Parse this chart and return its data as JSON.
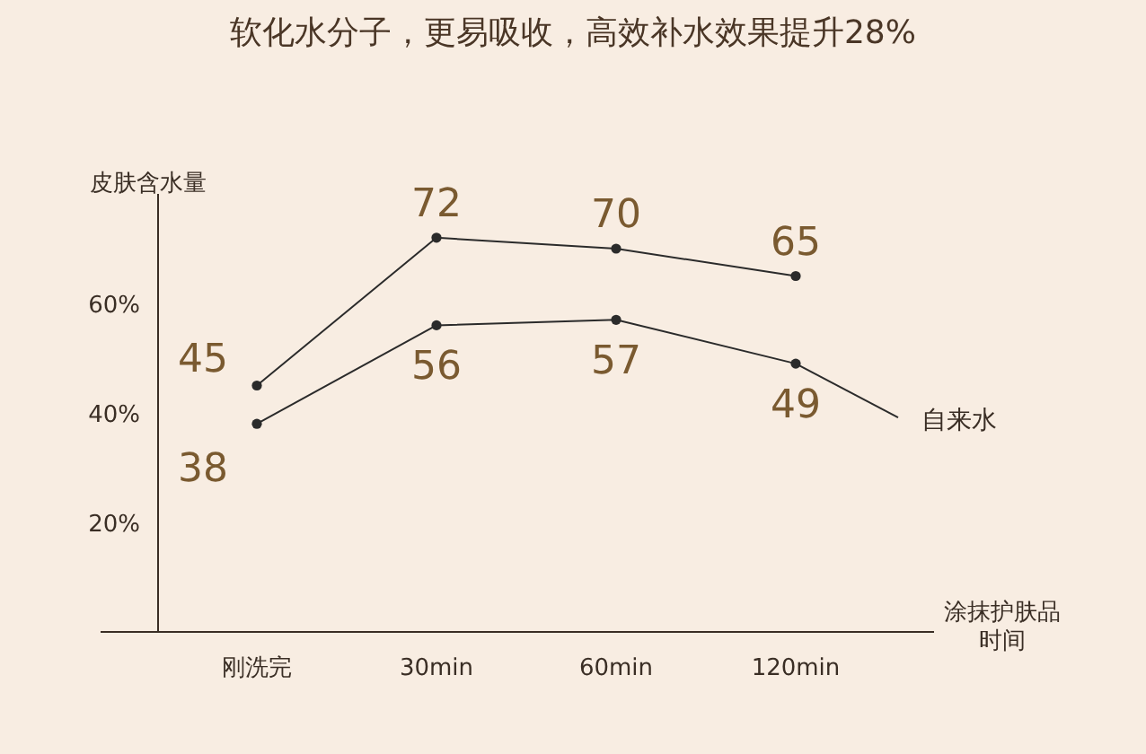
{
  "chart_data": {
    "type": "line",
    "title": "软化水分子，更易吸收，高效补水效果提升28%",
    "ylabel": "皮肤含水量",
    "xlabel": "涂抹护肤品时间",
    "categories": [
      "刚洗完",
      "30min",
      "60min",
      "120min"
    ],
    "series": [
      {
        "color": "#2b2b2b",
        "values": [
          45,
          72,
          70,
          65
        ]
      },
      {
        "name": "自来水",
        "color": "#2b2b2b",
        "values": [
          38,
          56,
          57,
          49
        ]
      }
    ],
    "ylim": [
      0,
      80
    ],
    "yticks": [
      {
        "value": 20,
        "label": "20%"
      },
      {
        "value": 40,
        "label": "40%"
      },
      {
        "value": 60,
        "label": "60%"
      }
    ],
    "data_labels": true,
    "marker": "circle",
    "line_style": "solid",
    "grid": false,
    "legend": false
  }
}
